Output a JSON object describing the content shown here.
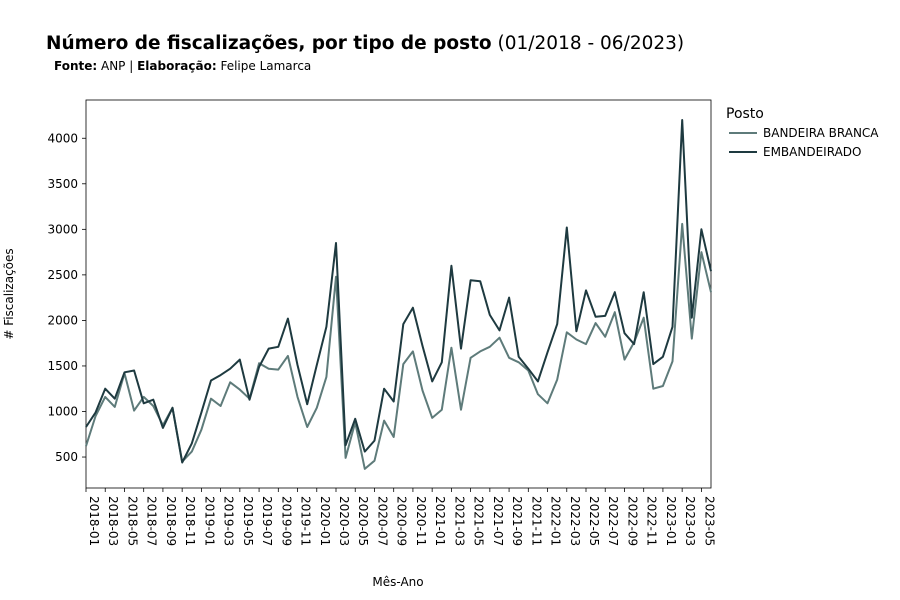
{
  "title": {
    "bold": "Número de fiscalizações, por tipo de posto",
    "normal": "(01/2018 - 06/2023)"
  },
  "subtitle": {
    "source_label": "Fonte:",
    "source_value": "ANP |",
    "author_label": "Elaboração:",
    "author_value": "Felipe Lamarca"
  },
  "chart_data": {
    "type": "line",
    "xlabel": "Mês-Ano",
    "ylabel": "# Fiscalizações",
    "ylim": [
      160,
      4420
    ],
    "yticks": [
      500,
      1000,
      1500,
      2000,
      2500,
      3000,
      3500,
      4000
    ],
    "x": [
      "2018-01",
      "2018-02",
      "2018-03",
      "2018-04",
      "2018-05",
      "2018-06",
      "2018-07",
      "2018-08",
      "2018-09",
      "2018-10",
      "2018-11",
      "2018-12",
      "2019-01",
      "2019-02",
      "2019-03",
      "2019-04",
      "2019-05",
      "2019-06",
      "2019-07",
      "2019-08",
      "2019-09",
      "2019-10",
      "2019-11",
      "2019-12",
      "2020-01",
      "2020-02",
      "2020-03",
      "2020-04",
      "2020-05",
      "2020-06",
      "2020-07",
      "2020-08",
      "2020-09",
      "2020-10",
      "2020-11",
      "2020-12",
      "2021-01",
      "2021-02",
      "2021-03",
      "2021-04",
      "2021-05",
      "2021-06",
      "2021-07",
      "2021-08",
      "2021-09",
      "2021-10",
      "2021-11",
      "2021-12",
      "2022-01",
      "2022-02",
      "2022-03",
      "2022-04",
      "2022-05",
      "2022-06",
      "2022-07",
      "2022-08",
      "2022-09",
      "2022-10",
      "2022-11",
      "2022-12",
      "2023-01",
      "2023-02",
      "2023-03",
      "2023-04",
      "2023-05",
      "2023-06"
    ],
    "xticks": [
      "2018-01",
      "2018-03",
      "2018-05",
      "2018-07",
      "2018-09",
      "2018-11",
      "2019-01",
      "2019-03",
      "2019-05",
      "2019-07",
      "2019-09",
      "2019-11",
      "2020-01",
      "2020-03",
      "2020-05",
      "2020-07",
      "2020-09",
      "2020-11",
      "2021-01",
      "2021-03",
      "2021-05",
      "2021-07",
      "2021-09",
      "2021-11",
      "2022-01",
      "2022-03",
      "2022-05",
      "2022-07",
      "2022-09",
      "2022-11",
      "2023-01",
      "2023-03",
      "2023-05"
    ],
    "legend_title": "Posto",
    "legend_position": "right",
    "grid": false,
    "series": [
      {
        "name": "BANDEIRA BRANCA",
        "color": "#5e7b7a",
        "values": [
          620,
          950,
          1160,
          1050,
          1420,
          1010,
          1160,
          1060,
          850,
          1040,
          450,
          560,
          800,
          1140,
          1060,
          1320,
          1240,
          1140,
          1530,
          1470,
          1460,
          1610,
          1160,
          830,
          1040,
          1380,
          2480,
          490,
          880,
          370,
          460,
          900,
          720,
          1520,
          1660,
          1230,
          930,
          1020,
          1700,
          1020,
          1590,
          1660,
          1710,
          1810,
          1590,
          1540,
          1450,
          1190,
          1090,
          1350,
          1870,
          1790,
          1740,
          1970,
          1820,
          2090,
          1570,
          1760,
          2030,
          1250,
          1280,
          1550,
          3060,
          1800,
          2750,
          2310
        ]
      },
      {
        "name": "EMBANDEIRADO",
        "color": "#1e3a40",
        "values": [
          830,
          990,
          1250,
          1140,
          1430,
          1450,
          1090,
          1130,
          820,
          1040,
          440,
          650,
          990,
          1340,
          1400,
          1470,
          1570,
          1130,
          1490,
          1690,
          1710,
          2020,
          1510,
          1080,
          1510,
          1930,
          2850,
          630,
          920,
          560,
          680,
          1250,
          1110,
          1960,
          2140,
          1720,
          1330,
          1540,
          2600,
          1690,
          2440,
          2430,
          2060,
          1890,
          2250,
          1600,
          1470,
          1330,
          1650,
          1960,
          3020,
          1880,
          2330,
          2040,
          2050,
          2310,
          1860,
          1740,
          2310,
          1520,
          1600,
          1930,
          4200,
          2030,
          3000,
          2540
        ]
      }
    ]
  }
}
